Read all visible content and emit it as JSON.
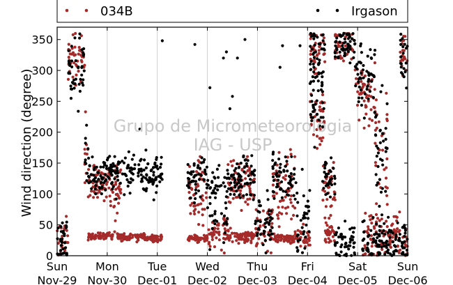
{
  "chart_data": {
    "type": "scatter",
    "title": "",
    "xlabel": "",
    "ylabel": "Wind direction (degree)",
    "ylim": [
      0,
      370
    ],
    "xlim": [
      0,
      7
    ],
    "yticks": [
      0,
      50,
      100,
      150,
      200,
      250,
      300,
      350
    ],
    "grid": "vertical",
    "legend_placement": "top, outside plot",
    "watermark": [
      "Grupo de Micrometeorologia",
      "IAG - USP"
    ],
    "x_ticks": [
      {
        "day": "Sun",
        "date": "Nov-29"
      },
      {
        "day": "Mon",
        "date": "Nov-30"
      },
      {
        "day": "Tue",
        "date": "Dec-01"
      },
      {
        "day": "Wed",
        "date": "Dec-02"
      },
      {
        "day": "Thu",
        "date": "Dec-03"
      },
      {
        "day": "Fri",
        "date": "Dec-04"
      },
      {
        "day": "Sat",
        "date": "Dec-05"
      },
      {
        "day": "Sun",
        "date": "Dec-06"
      }
    ],
    "series": [
      {
        "name": "034B",
        "color": "#a52a2a",
        "segments": [
          {
            "t0": 0.0,
            "t1": 0.22,
            "y": 25,
            "s": 18
          },
          {
            "t0": 0.22,
            "t1": 0.55,
            "y": 315,
            "s": 22
          },
          {
            "t0": 0.55,
            "t1": 0.62,
            "y": 180,
            "s": 30
          },
          {
            "t0": 0.62,
            "t1": 1.0,
            "y": 115,
            "s": 15
          },
          {
            "t0": 0.62,
            "t1": 1.15,
            "y": 32,
            "s": 3
          },
          {
            "t0": 1.0,
            "t1": 1.3,
            "y": 110,
            "s": 18
          },
          {
            "t0": 1.2,
            "t1": 1.75,
            "y": 30,
            "s": 3
          },
          {
            "t0": 1.75,
            "t1": 2.1,
            "y": 28,
            "s": 3
          },
          {
            "t0": 2.6,
            "t1": 3.0,
            "y": 28,
            "s": 3
          },
          {
            "t0": 2.6,
            "t1": 3.0,
            "y": 100,
            "s": 25
          },
          {
            "t0": 3.0,
            "t1": 3.4,
            "y": 35,
            "s": 15
          },
          {
            "t0": 3.4,
            "t1": 3.95,
            "y": 30,
            "s": 5
          },
          {
            "t0": 3.4,
            "t1": 3.95,
            "y": 120,
            "s": 20
          },
          {
            "t0": 3.95,
            "t1": 4.3,
            "y": 45,
            "s": 18
          },
          {
            "t0": 4.3,
            "t1": 4.75,
            "y": 28,
            "s": 4
          },
          {
            "t0": 4.3,
            "t1": 4.75,
            "y": 110,
            "s": 25
          },
          {
            "t0": 4.75,
            "t1": 5.05,
            "y": 30,
            "s": 8
          },
          {
            "t0": 5.05,
            "t1": 5.35,
            "y": 335,
            "s": 20
          },
          {
            "t0": 5.05,
            "t1": 5.35,
            "y": 220,
            "s": 30
          },
          {
            "t0": 5.3,
            "t1": 5.55,
            "y": 110,
            "s": 25
          },
          {
            "t0": 5.3,
            "t1": 5.55,
            "y": 35,
            "s": 10
          },
          {
            "t0": 5.55,
            "t1": 5.95,
            "y": 340,
            "s": 15
          },
          {
            "t0": 5.95,
            "t1": 6.35,
            "y": 270,
            "s": 25
          },
          {
            "t0": 6.1,
            "t1": 6.6,
            "y": 30,
            "s": 20
          },
          {
            "t0": 6.35,
            "t1": 6.6,
            "y": 180,
            "s": 40
          },
          {
            "t0": 6.6,
            "t1": 7.0,
            "y": 30,
            "s": 20
          },
          {
            "t0": 6.85,
            "t1": 7.0,
            "y": 320,
            "s": 20
          }
        ]
      },
      {
        "name": "Irgason",
        "color": "#000000",
        "segments": [
          {
            "t0": 0.0,
            "t1": 0.22,
            "y": 25,
            "s": 20
          },
          {
            "t0": 0.22,
            "t1": 0.55,
            "y": 310,
            "s": 25
          },
          {
            "t0": 0.55,
            "t1": 0.62,
            "y": 175,
            "s": 30
          },
          {
            "t0": 0.62,
            "t1": 1.0,
            "y": 130,
            "s": 15
          },
          {
            "t0": 1.0,
            "t1": 1.5,
            "y": 135,
            "s": 15
          },
          {
            "t0": 1.5,
            "t1": 2.1,
            "y": 130,
            "s": 15
          },
          {
            "t0": 2.6,
            "t1": 3.0,
            "y": 125,
            "s": 18
          },
          {
            "t0": 3.0,
            "t1": 3.4,
            "y": 85,
            "s": 45
          },
          {
            "t0": 3.4,
            "t1": 3.95,
            "y": 130,
            "s": 18
          },
          {
            "t0": 3.95,
            "t1": 4.3,
            "y": 55,
            "s": 25
          },
          {
            "t0": 4.3,
            "t1": 4.75,
            "y": 125,
            "s": 20
          },
          {
            "t0": 4.75,
            "t1": 5.05,
            "y": 60,
            "s": 35
          },
          {
            "t0": 5.05,
            "t1": 5.35,
            "y": 330,
            "s": 25
          },
          {
            "t0": 5.05,
            "t1": 5.35,
            "y": 250,
            "s": 35
          },
          {
            "t0": 5.3,
            "t1": 5.55,
            "y": 125,
            "s": 20
          },
          {
            "t0": 5.55,
            "t1": 5.95,
            "y": 345,
            "s": 15
          },
          {
            "t0": 5.55,
            "t1": 5.95,
            "y": 20,
            "s": 15
          },
          {
            "t0": 5.95,
            "t1": 6.35,
            "y": 290,
            "s": 25
          },
          {
            "t0": 6.35,
            "t1": 6.6,
            "y": 170,
            "s": 45
          },
          {
            "t0": 6.1,
            "t1": 6.6,
            "y": 25,
            "s": 20
          },
          {
            "t0": 6.6,
            "t1": 7.0,
            "y": 25,
            "s": 20
          },
          {
            "t0": 6.85,
            "t1": 7.0,
            "y": 320,
            "s": 25
          }
        ],
        "outliers": [
          {
            "t": 1.65,
            "y": 205
          },
          {
            "t": 2.1,
            "y": 348
          },
          {
            "t": 2.75,
            "y": 342
          },
          {
            "t": 3.05,
            "y": 272
          },
          {
            "t": 3.2,
            "y": 140
          },
          {
            "t": 3.32,
            "y": 320
          },
          {
            "t": 3.38,
            "y": 330
          },
          {
            "t": 3.45,
            "y": 238
          },
          {
            "t": 3.5,
            "y": 258
          },
          {
            "t": 3.6,
            "y": 320
          },
          {
            "t": 3.75,
            "y": 350
          },
          {
            "t": 4.45,
            "y": 305
          },
          {
            "t": 4.5,
            "y": 340
          },
          {
            "t": 4.85,
            "y": 340
          }
        ]
      }
    ]
  }
}
